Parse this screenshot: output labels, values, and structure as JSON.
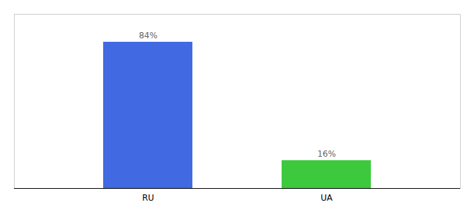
{
  "chart_data": {
    "type": "bar",
    "categories": [
      "RU",
      "UA"
    ],
    "values": [
      84,
      16
    ],
    "value_labels": [
      "84%",
      "16%"
    ],
    "data_labels": true,
    "colors": [
      "#4169e1",
      "#3dc93d"
    ],
    "ylim": [
      0,
      100
    ],
    "grid": false,
    "tick_labels": "x"
  }
}
